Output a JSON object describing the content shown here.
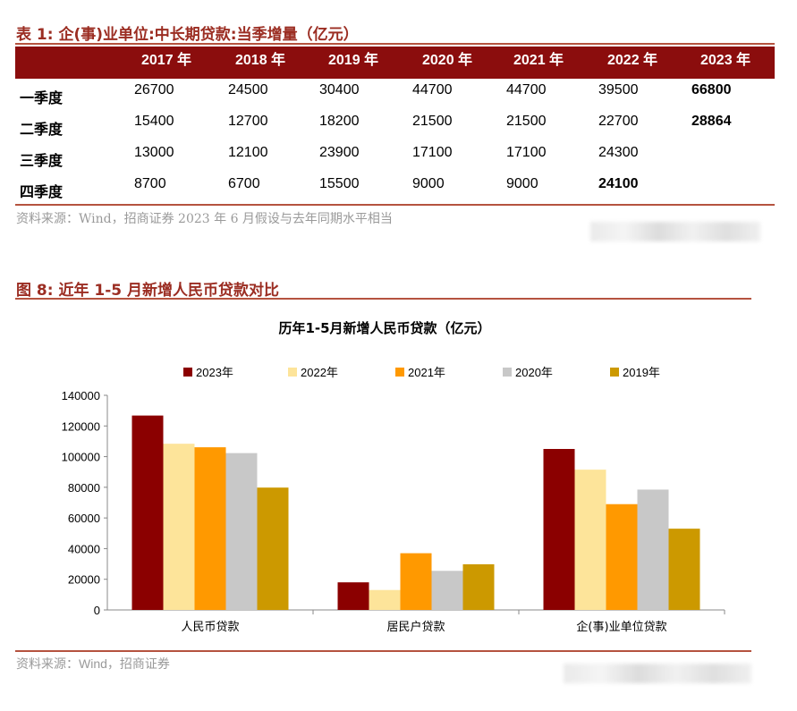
{
  "table": {
    "title": "表 1:  企(事)业单位:中长期贷款:当季增量（亿元）",
    "years": [
      "2017 年",
      "2018 年",
      "2019 年",
      "2020 年",
      "2021 年",
      "2022 年",
      "2023 年"
    ],
    "rows": [
      {
        "label": "一季度",
        "values": [
          "26700",
          "24500",
          "30400",
          "44700",
          "44700",
          "39500",
          "66800"
        ]
      },
      {
        "label": "二季度",
        "values": [
          "15400",
          "12700",
          "18200",
          "21500",
          "21500",
          "22700",
          "28864"
        ]
      },
      {
        "label": "三季度",
        "values": [
          "13000",
          "12100",
          "23900",
          "17100",
          "17100",
          "24300",
          ""
        ]
      },
      {
        "label": "四季度",
        "values": [
          "8700",
          "6700",
          "15500",
          "9000",
          "9000",
          "24100",
          ""
        ]
      }
    ],
    "source": "资料来源：Wind，招商证券  2023 年 6 月假设与去年同期水平相当"
  },
  "figure": {
    "title": "图 8:  近年 1-5 月新增人民币贷款对比",
    "source": "资料来源：Wind，招商证券"
  },
  "chart_data": {
    "type": "bar",
    "title": "历年1-5月新增人民币贷款（亿元）",
    "categories": [
      "人民币贷款",
      "居民户贷款",
      "企(事)业单位贷款"
    ],
    "series": [
      {
        "name": "2023年",
        "color": "#8b0000",
        "values": [
          126800,
          18000,
          105000
        ]
      },
      {
        "name": "2022年",
        "color": "#fde49a",
        "values": [
          108400,
          13000,
          91500
        ]
      },
      {
        "name": "2021年",
        "color": "#ff9900",
        "values": [
          106100,
          37000,
          69000
        ]
      },
      {
        "name": "2020年",
        "color": "#c8c8c8",
        "values": [
          102300,
          25500,
          78500
        ]
      },
      {
        "name": "2019年",
        "color": "#cc9900",
        "values": [
          79800,
          29800,
          53000
        ]
      }
    ],
    "ylim": [
      0,
      140000
    ],
    "yticks": [
      "0",
      "20000",
      "40000",
      "60000",
      "80000",
      "100000",
      "120000",
      "140000"
    ],
    "legend": "top",
    "grid": false
  }
}
